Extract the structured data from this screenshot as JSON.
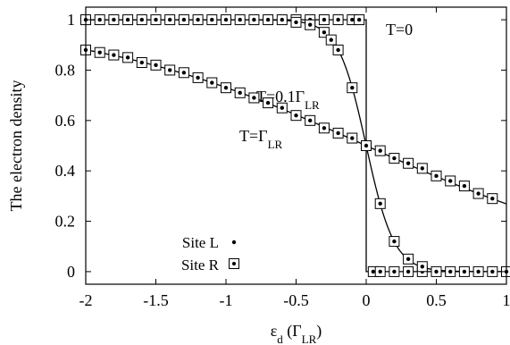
{
  "chart_data": {
    "type": "scatter",
    "xlabel": "ε",
    "xlabel_sub": "d",
    "xlabel_unit_open": " (Γ",
    "xlabel_unit_sub": "LR",
    "xlabel_unit_close": ")",
    "ylabel": "The electron density",
    "xlim": [
      -2,
      1
    ],
    "ylim": [
      -0.05,
      1.05
    ],
    "xticks": [
      -2,
      -1.5,
      -1,
      -0.5,
      0,
      0.5,
      1
    ],
    "xtick_labels": [
      "-2",
      "-1.5",
      "-1",
      "-0.5",
      "0",
      "0.5",
      "1"
    ],
    "yticks": [
      0,
      0.2,
      0.4,
      0.6,
      0.8,
      1
    ],
    "ytick_labels": [
      "0",
      "0.2",
      "0.4",
      "0.6",
      "0.8",
      "1"
    ],
    "grid": false,
    "legend": {
      "placement": "bottom-left",
      "entries": [
        {
          "label": "Site L",
          "marker": "dot"
        },
        {
          "label": "Site R",
          "marker": "square-dot"
        }
      ]
    },
    "annotations": [
      {
        "id": "t0",
        "text": "T=0",
        "sub": ""
      },
      {
        "id": "t01",
        "text": "T=0.1Γ",
        "sub": "LR"
      },
      {
        "id": "t1",
        "text": "T=Γ",
        "sub": "LR"
      }
    ],
    "curves": [
      {
        "temperature": 0
      },
      {
        "temperature": 0.1
      },
      {
        "temperature": 1
      }
    ],
    "series": [
      {
        "name": "T=0",
        "x": [
          -2.0,
          -1.9,
          -1.8,
          -1.7,
          -1.6,
          -1.5,
          -1.4,
          -1.3,
          -1.2,
          -1.1,
          -1.0,
          -0.9,
          -0.8,
          -0.7,
          -0.6,
          -0.5,
          -0.4,
          -0.3,
          -0.2,
          -0.1,
          -0.05,
          0.0,
          0.05,
          0.1,
          0.2,
          0.3,
          0.4,
          0.5,
          0.6,
          0.7,
          0.8,
          0.9,
          1.0
        ],
        "y": [
          1,
          1,
          1,
          1,
          1,
          1,
          1,
          1,
          1,
          1,
          1,
          1,
          1,
          1,
          1,
          1,
          1,
          1,
          1,
          1,
          1,
          0.5,
          0,
          0,
          0,
          0,
          0,
          0,
          0,
          0,
          0,
          0,
          0
        ]
      },
      {
        "name": "T=0.1ΓLR",
        "x": [
          -0.5,
          -0.4,
          -0.3,
          -0.25,
          -0.2,
          -0.1,
          0.0,
          0.1,
          0.2,
          0.3,
          0.4
        ],
        "y": [
          0.99,
          0.98,
          0.95,
          0.92,
          0.88,
          0.73,
          0.5,
          0.27,
          0.12,
          0.05,
          0.02
        ]
      },
      {
        "name": "T=ΓLR",
        "x": [
          -2.0,
          -1.9,
          -1.8,
          -1.7,
          -1.6,
          -1.5,
          -1.4,
          -1.3,
          -1.2,
          -1.1,
          -1.0,
          -0.9,
          -0.8,
          -0.7,
          -0.6,
          -0.5,
          -0.4,
          -0.3,
          -0.2,
          -0.1,
          0.0,
          0.1,
          0.2,
          0.3,
          0.4,
          0.5,
          0.6,
          0.7,
          0.8,
          0.9
        ],
        "y": [
          0.88,
          0.87,
          0.86,
          0.85,
          0.83,
          0.82,
          0.8,
          0.79,
          0.77,
          0.75,
          0.73,
          0.71,
          0.69,
          0.67,
          0.65,
          0.62,
          0.6,
          0.57,
          0.55,
          0.53,
          0.5,
          0.48,
          0.45,
          0.43,
          0.41,
          0.38,
          0.36,
          0.34,
          0.31,
          0.29
        ]
      }
    ]
  }
}
